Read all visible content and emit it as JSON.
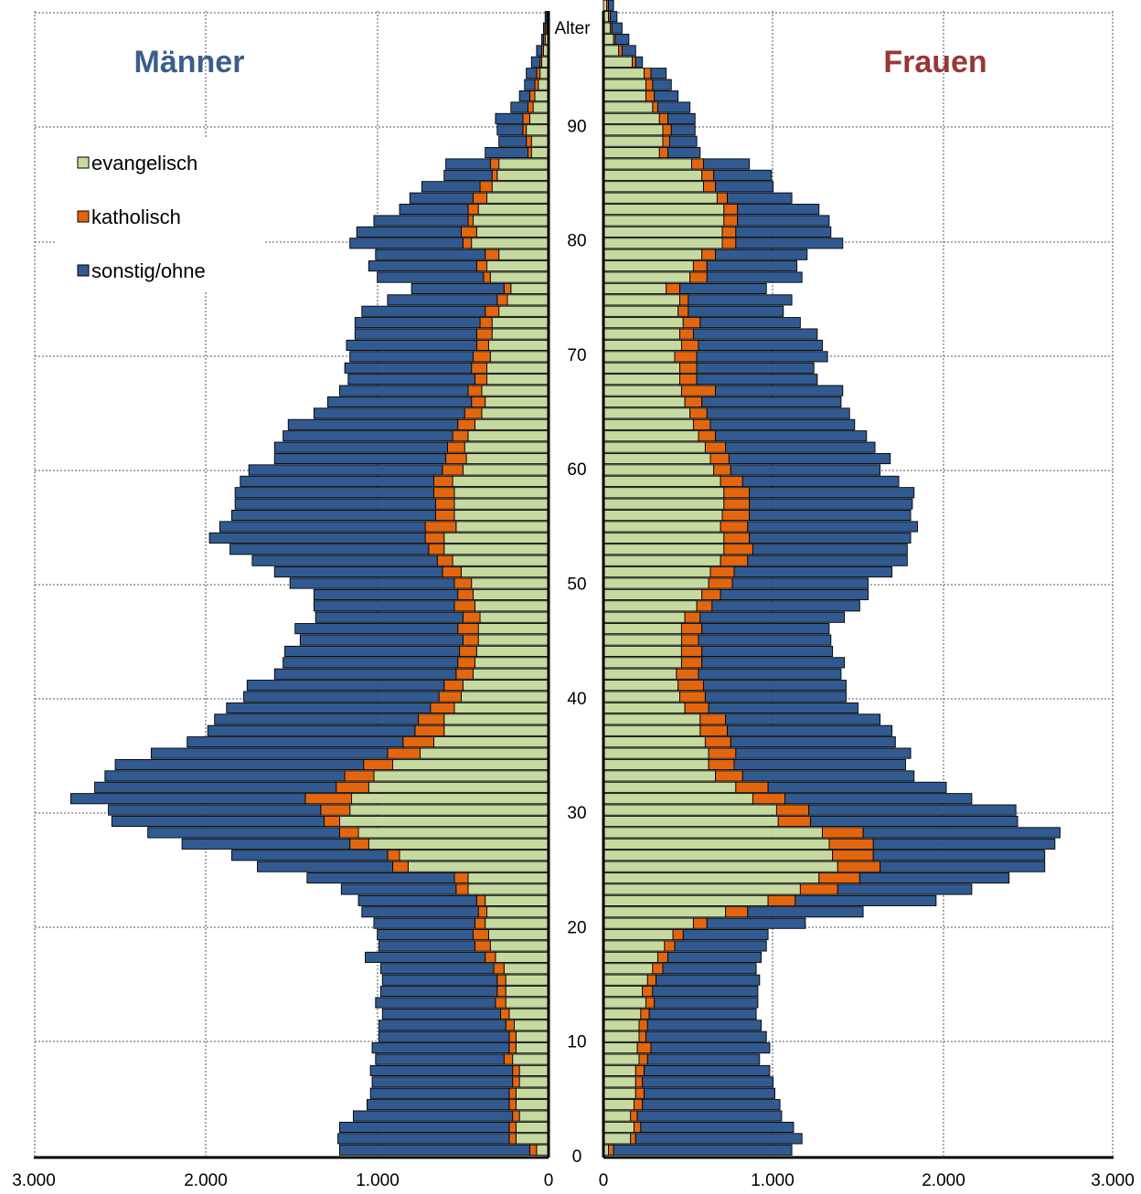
{
  "colors": {
    "evangelisch": "#c6daa0",
    "katholisch": "#e3660e",
    "sonstig": "#315a91",
    "maenner_title": "#3b5e8c",
    "frauen_title": "#973836"
  },
  "chart_data": [
    {
      "type": "bar",
      "title": "Männer",
      "orientation": "horizontal",
      "direction": "left",
      "xlim": [
        0,
        3000
      ],
      "xticks": [
        "3.000",
        "2.000",
        "1.000",
        "0"
      ],
      "age_label": "Alter",
      "age_ticks": [
        "0",
        "10",
        "20",
        "30",
        "40",
        "50",
        "60",
        "70",
        "80",
        "90"
      ],
      "legend": [
        "evangelisch",
        "katholisch",
        "sonstig/ohne"
      ],
      "legend_position": "top-left",
      "grid": true,
      "stack": "evangelisch, katholisch, sonstig/ohne",
      "cumulative_totals": [
        [
          70,
          110,
          1220
        ],
        [
          190,
          230,
          1230
        ],
        [
          190,
          230,
          1220
        ],
        [
          170,
          210,
          1140
        ],
        [
          190,
          230,
          1060
        ],
        [
          190,
          230,
          1040
        ],
        [
          170,
          210,
          1030
        ],
        [
          170,
          210,
          1040
        ],
        [
          210,
          260,
          1010
        ],
        [
          190,
          230,
          1030
        ],
        [
          190,
          230,
          990
        ],
        [
          200,
          250,
          990
        ],
        [
          230,
          280,
          970
        ],
        [
          250,
          310,
          1010
        ],
        [
          250,
          300,
          980
        ],
        [
          250,
          300,
          970
        ],
        [
          260,
          320,
          980
        ],
        [
          310,
          370,
          1070
        ],
        [
          340,
          430,
          990
        ],
        [
          350,
          440,
          1000
        ],
        [
          370,
          430,
          1020
        ],
        [
          360,
          410,
          1090
        ],
        [
          370,
          420,
          1110
        ],
        [
          470,
          540,
          1210
        ],
        [
          470,
          550,
          1410
        ],
        [
          820,
          910,
          1700
        ],
        [
          870,
          940,
          1850
        ],
        [
          1050,
          1160,
          2140
        ],
        [
          1110,
          1220,
          2340
        ],
        [
          1220,
          1310,
          2550
        ],
        [
          1160,
          1330,
          2570
        ],
        [
          1150,
          1420,
          2790
        ],
        [
          1050,
          1240,
          2650
        ],
        [
          1020,
          1190,
          2590
        ],
        [
          910,
          1080,
          2530
        ],
        [
          750,
          940,
          2320
        ],
        [
          670,
          850,
          2110
        ],
        [
          610,
          780,
          1990
        ],
        [
          610,
          760,
          1950
        ],
        [
          550,
          690,
          1880
        ],
        [
          510,
          640,
          1780
        ],
        [
          500,
          610,
          1760
        ],
        [
          440,
          540,
          1600
        ],
        [
          430,
          530,
          1550
        ],
        [
          420,
          520,
          1540
        ],
        [
          410,
          500,
          1450
        ],
        [
          410,
          530,
          1480
        ],
        [
          400,
          500,
          1360
        ],
        [
          430,
          550,
          1370
        ],
        [
          440,
          530,
          1370
        ],
        [
          450,
          550,
          1510
        ],
        [
          510,
          620,
          1600
        ],
        [
          560,
          650,
          1730
        ],
        [
          610,
          700,
          1860
        ],
        [
          610,
          720,
          1980
        ],
        [
          540,
          720,
          1920
        ],
        [
          550,
          660,
          1850
        ],
        [
          550,
          660,
          1830
        ],
        [
          550,
          670,
          1830
        ],
        [
          560,
          670,
          1800
        ],
        [
          500,
          620,
          1750
        ],
        [
          480,
          600,
          1600
        ],
        [
          490,
          590,
          1600
        ],
        [
          470,
          560,
          1550
        ],
        [
          430,
          530,
          1520
        ],
        [
          390,
          490,
          1370
        ],
        [
          370,
          450,
          1290
        ],
        [
          390,
          470,
          1220
        ],
        [
          360,
          430,
          1170
        ],
        [
          360,
          450,
          1190
        ],
        [
          340,
          440,
          1160
        ],
        [
          350,
          420,
          1180
        ],
        [
          330,
          420,
          1130
        ],
        [
          330,
          400,
          1130
        ],
        [
          290,
          370,
          1090
        ],
        [
          240,
          300,
          940
        ],
        [
          220,
          260,
          800
        ],
        [
          340,
          380,
          1000
        ],
        [
          360,
          420,
          1050
        ],
        [
          290,
          370,
          1010
        ],
        [
          450,
          500,
          1160
        ],
        [
          420,
          510,
          1120
        ],
        [
          440,
          470,
          1020
        ],
        [
          410,
          470,
          870
        ],
        [
          360,
          440,
          810
        ],
        [
          330,
          400,
          740
        ],
        [
          300,
          330,
          610
        ],
        [
          290,
          340,
          600
        ],
        [
          100,
          120,
          370
        ],
        [
          100,
          130,
          290
        ],
        [
          130,
          150,
          300
        ],
        [
          110,
          150,
          310
        ],
        [
          90,
          120,
          220
        ],
        [
          80,
          110,
          170
        ],
        [
          60,
          80,
          140
        ],
        [
          50,
          70,
          130
        ],
        [
          40,
          50,
          100
        ],
        [
          30,
          40,
          70
        ],
        [
          20,
          30,
          40
        ],
        [
          10,
          20,
          30
        ],
        [
          5,
          10,
          20
        ]
      ]
    },
    {
      "type": "bar",
      "title": "Frauen",
      "orientation": "horizontal",
      "direction": "right",
      "xlim": [
        0,
        3000
      ],
      "xticks": [
        "0",
        "1.000",
        "2.000",
        "3.000"
      ],
      "age_label": "Alter",
      "age_ticks": [
        "0",
        "10",
        "20",
        "30",
        "40",
        "50",
        "60",
        "70",
        "80",
        "90"
      ],
      "grid": true,
      "stack": "evangelisch, katholisch, sonstig/ohne",
      "cumulative_totals": [
        [
          30,
          60,
          1110
        ],
        [
          160,
          190,
          1170
        ],
        [
          180,
          220,
          1120
        ],
        [
          160,
          200,
          1050
        ],
        [
          180,
          230,
          1040
        ],
        [
          190,
          240,
          1010
        ],
        [
          190,
          230,
          1000
        ],
        [
          190,
          240,
          980
        ],
        [
          210,
          260,
          920
        ],
        [
          200,
          280,
          980
        ],
        [
          210,
          250,
          960
        ],
        [
          210,
          260,
          930
        ],
        [
          220,
          270,
          900
        ],
        [
          250,
          300,
          910
        ],
        [
          230,
          290,
          910
        ],
        [
          260,
          310,
          920
        ],
        [
          290,
          350,
          900
        ],
        [
          320,
          380,
          930
        ],
        [
          360,
          420,
          960
        ],
        [
          410,
          470,
          970
        ],
        [
          530,
          610,
          1190
        ],
        [
          720,
          850,
          1530
        ],
        [
          970,
          1130,
          1960
        ],
        [
          1160,
          1380,
          2170
        ],
        [
          1270,
          1510,
          2390
        ],
        [
          1380,
          1630,
          2600
        ],
        [
          1350,
          1590,
          2600
        ],
        [
          1330,
          1590,
          2660
        ],
        [
          1290,
          1530,
          2690
        ],
        [
          1030,
          1220,
          2440
        ],
        [
          1020,
          1210,
          2430
        ],
        [
          880,
          1070,
          2170
        ],
        [
          780,
          970,
          2020
        ],
        [
          660,
          820,
          1830
        ],
        [
          620,
          770,
          1780
        ],
        [
          620,
          780,
          1810
        ],
        [
          600,
          750,
          1720
        ],
        [
          570,
          730,
          1700
        ],
        [
          570,
          720,
          1630
        ],
        [
          480,
          620,
          1500
        ],
        [
          450,
          600,
          1430
        ],
        [
          440,
          590,
          1430
        ],
        [
          430,
          560,
          1400
        ],
        [
          460,
          580,
          1420
        ],
        [
          460,
          580,
          1350
        ],
        [
          460,
          560,
          1340
        ],
        [
          460,
          580,
          1330
        ],
        [
          480,
          570,
          1420
        ],
        [
          550,
          640,
          1510
        ],
        [
          580,
          690,
          1560
        ],
        [
          620,
          760,
          1560
        ],
        [
          630,
          770,
          1700
        ],
        [
          690,
          850,
          1790
        ],
        [
          710,
          880,
          1790
        ],
        [
          710,
          860,
          1810
        ],
        [
          690,
          850,
          1850
        ],
        [
          700,
          860,
          1810
        ],
        [
          710,
          860,
          1820
        ],
        [
          710,
          860,
          1830
        ],
        [
          690,
          820,
          1740
        ],
        [
          650,
          750,
          1630
        ],
        [
          630,
          740,
          1690
        ],
        [
          600,
          720,
          1600
        ],
        [
          560,
          660,
          1550
        ],
        [
          530,
          630,
          1480
        ],
        [
          510,
          610,
          1450
        ],
        [
          480,
          580,
          1400
        ],
        [
          460,
          660,
          1410
        ],
        [
          450,
          550,
          1260
        ],
        [
          450,
          550,
          1240
        ],
        [
          420,
          550,
          1320
        ],
        [
          460,
          560,
          1290
        ],
        [
          450,
          530,
          1260
        ],
        [
          470,
          570,
          1160
        ],
        [
          440,
          500,
          1060
        ],
        [
          450,
          500,
          1110
        ],
        [
          370,
          450,
          960
        ],
        [
          510,
          610,
          1170
        ],
        [
          530,
          610,
          1140
        ],
        [
          580,
          660,
          1200
        ],
        [
          700,
          780,
          1410
        ],
        [
          700,
          780,
          1340
        ],
        [
          710,
          790,
          1330
        ],
        [
          710,
          790,
          1270
        ],
        [
          670,
          730,
          1110
        ],
        [
          590,
          660,
          1000
        ],
        [
          580,
          650,
          990
        ],
        [
          520,
          590,
          860
        ],
        [
          330,
          380,
          570
        ],
        [
          350,
          390,
          550
        ],
        [
          350,
          400,
          540
        ],
        [
          330,
          380,
          540
        ],
        [
          290,
          320,
          510
        ],
        [
          250,
          300,
          440
        ],
        [
          250,
          290,
          400
        ],
        [
          240,
          280,
          370
        ],
        [
          170,
          190,
          230
        ],
        [
          90,
          110,
          190
        ],
        [
          60,
          70,
          150
        ],
        [
          40,
          50,
          110
        ],
        [
          30,
          40,
          80
        ],
        [
          20,
          30,
          60
        ],
        [
          40,
          50,
          60
        ]
      ]
    }
  ]
}
